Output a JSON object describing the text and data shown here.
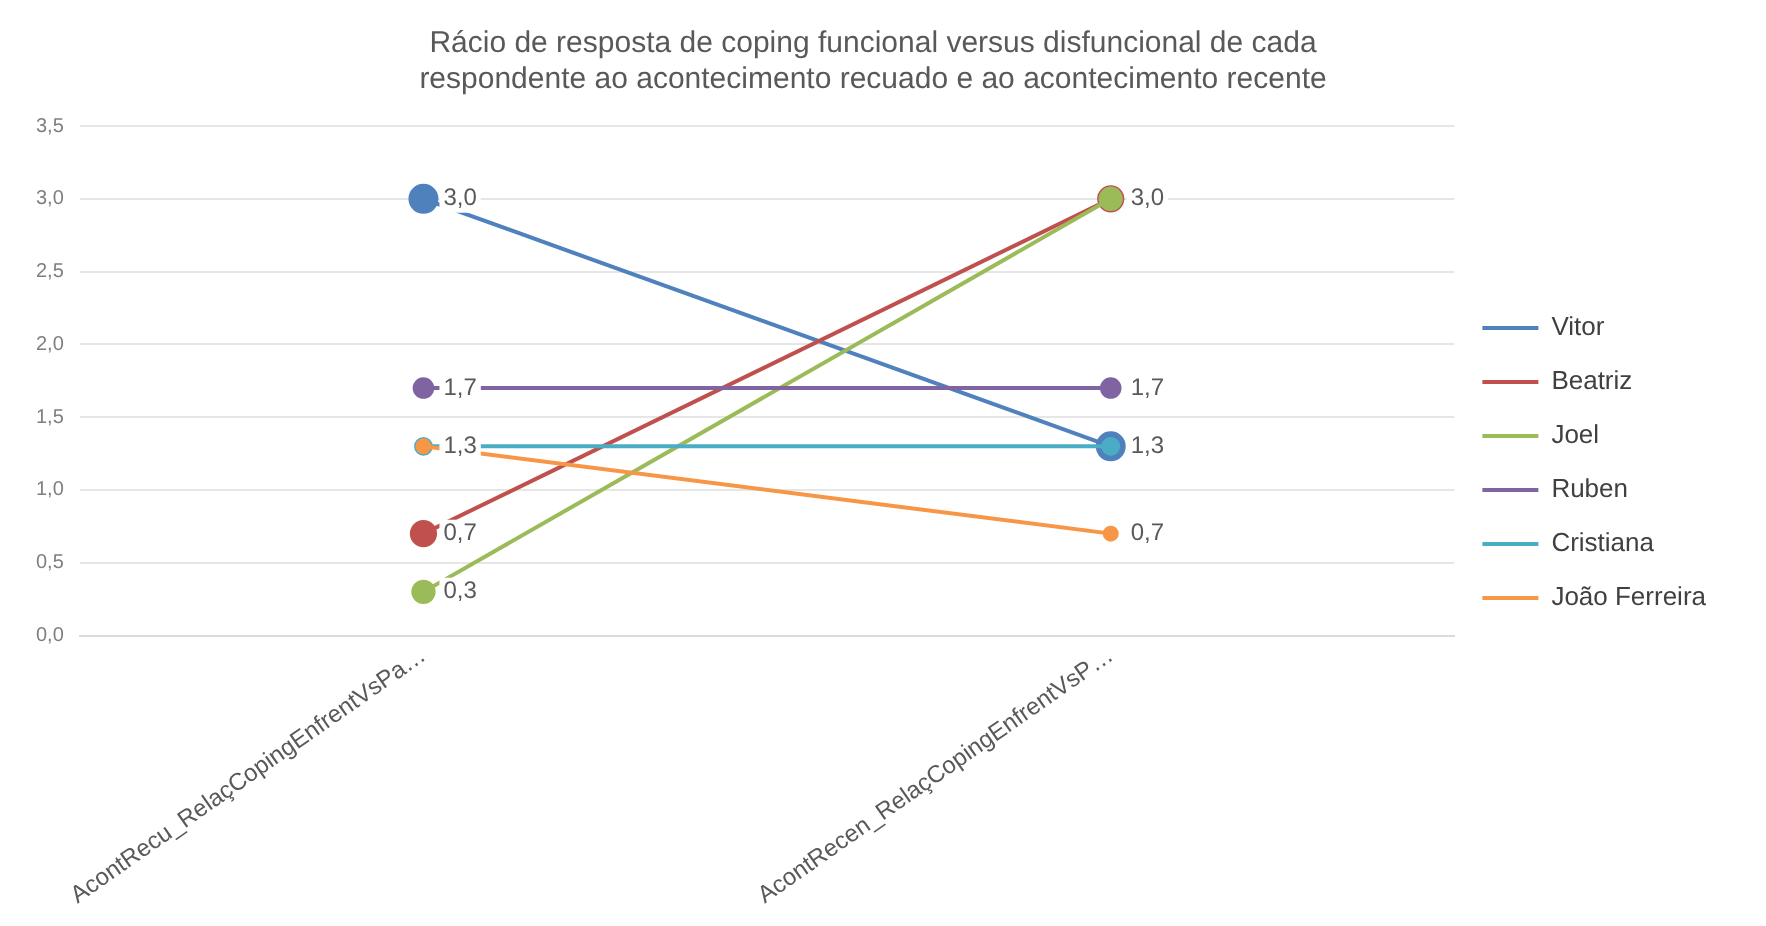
{
  "chart_data": {
    "type": "line",
    "title": [
      "Rácio de resposta de coping funcional versus disfuncional de cada",
      "respondente ao acontecimento recuado e ao acontecimento recente"
    ],
    "categories": [
      "AcontRecu_RelaçCopingEnfrentVsPa…",
      "AcontRecen_RelaçCopingEnfrentVsP…"
    ],
    "series": [
      {
        "name": "Vitor",
        "color": "#4f81bd",
        "values": [
          3.0,
          1.3
        ],
        "value_labels": [
          "3,0",
          "1,3"
        ]
      },
      {
        "name": "Beatriz",
        "color": "#c0504d",
        "values": [
          0.7,
          3.0
        ],
        "value_labels": [
          "0,7",
          null
        ]
      },
      {
        "name": "Joel",
        "color": "#9bbb59",
        "values": [
          0.3,
          3.0
        ],
        "value_labels": [
          "0,3",
          "3,0"
        ]
      },
      {
        "name": "Ruben",
        "color": "#8064a2",
        "values": [
          1.7,
          1.7
        ],
        "value_labels": [
          "1,7",
          "1,7"
        ]
      },
      {
        "name": "Cristiana",
        "color": "#4bacc6",
        "values": [
          1.3,
          1.3
        ],
        "value_labels": [
          null,
          null
        ]
      },
      {
        "name": "João Ferreira",
        "color": "#f79646",
        "values": [
          1.3,
          0.7
        ],
        "value_labels": [
          "1,3",
          "0,7"
        ]
      }
    ],
    "ylim": [
      0,
      3.5
    ],
    "yticks": [
      {
        "value": 0,
        "label": "0,0"
      },
      {
        "value": 0.5,
        "label": "0,5"
      },
      {
        "value": 1,
        "label": "1,0"
      },
      {
        "value": 1.5,
        "label": "1,5"
      },
      {
        "value": 2,
        "label": "2,0"
      },
      {
        "value": 2.5,
        "label": "2,5"
      },
      {
        "value": 3,
        "label": "3,0"
      },
      {
        "value": 3.5,
        "label": "3,5"
      }
    ],
    "grid": "y",
    "legend": "right",
    "marker": "circle",
    "line_style": "solid"
  }
}
